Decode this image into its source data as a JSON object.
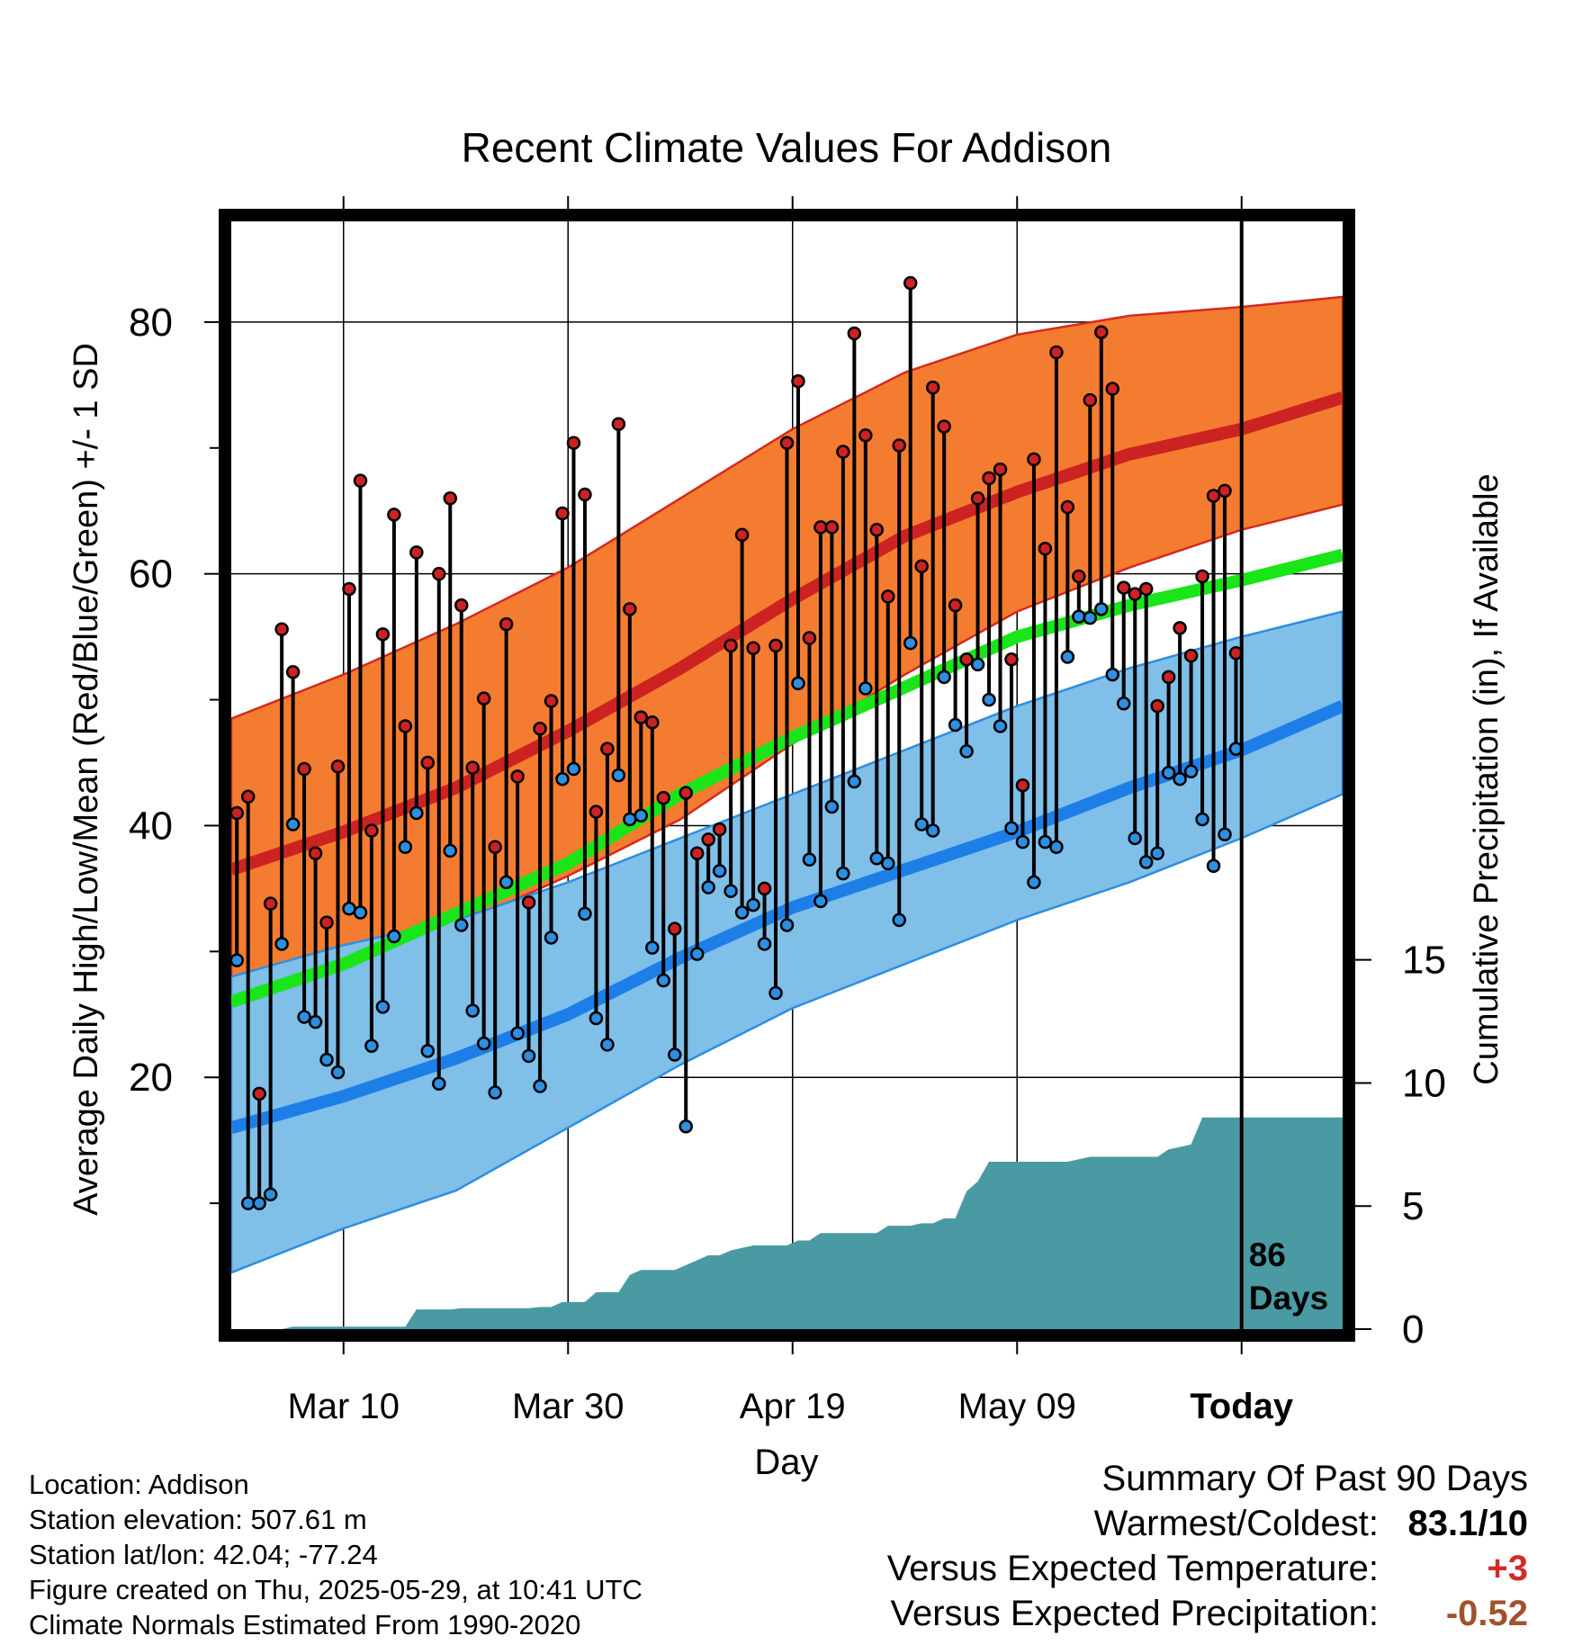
{
  "chart_data": {
    "type": "line",
    "title": "Recent Climate Values For Addison",
    "xlabel": "Day",
    "ylabel": "Average Daily High/Low/Mean (Red/Blue/Green) +/- 1 SD",
    "y2label": "Cumulative Precipitation (in), If Available",
    "x_ticks": [
      "Mar 10",
      "Mar 30",
      "Apr 19",
      "May 09",
      "Today"
    ],
    "x_tick_days": [
      10,
      30,
      50,
      70,
      90
    ],
    "y_ticks": [
      20,
      40,
      60,
      80
    ],
    "y_minor_ticks": [
      10,
      30,
      50,
      70
    ],
    "y2_ticks": [
      0,
      5,
      10,
      15
    ],
    "xlim": [
      0,
      99
    ],
    "ylim": [
      0,
      88
    ],
    "y2_range": [
      0,
      45
    ],
    "today_day": 90,
    "today_label": [
      "86",
      "Days"
    ],
    "normals": {
      "days": [
        0,
        10,
        20,
        30,
        40,
        50,
        60,
        70,
        80,
        90,
        99
      ],
      "high_mean": [
        36.5,
        39.5,
        43.0,
        47.5,
        52.5,
        58.0,
        63.0,
        66.5,
        69.5,
        71.5,
        74.0
      ],
      "high_upper": [
        48.5,
        52.0,
        56.0,
        60.5,
        66.0,
        71.5,
        76.0,
        79.0,
        80.5,
        81.2,
        82.0
      ],
      "high_lower": [
        27.0,
        29.0,
        32.0,
        36.0,
        40.5,
        46.5,
        52.0,
        57.0,
        60.5,
        63.5,
        65.5
      ],
      "mean": [
        26.0,
        29.0,
        33.0,
        37.0,
        42.5,
        47.0,
        51.0,
        55.0,
        57.5,
        59.5,
        61.5
      ],
      "low_mean": [
        16.0,
        18.5,
        21.5,
        25.0,
        29.5,
        33.5,
        36.5,
        39.5,
        43.0,
        46.0,
        49.5
      ],
      "low_upper": [
        28.0,
        30.5,
        32.5,
        35.5,
        39.0,
        42.5,
        46.0,
        49.5,
        52.5,
        55.0,
        57.0
      ],
      "low_lower": [
        4.5,
        8.0,
        11.0,
        16.0,
        21.0,
        25.5,
        29.0,
        32.5,
        35.5,
        39.0,
        42.5
      ]
    },
    "series": [
      {
        "name": "High",
        "color": "#cc2222",
        "values": [
          41.0,
          42.3,
          18.7,
          33.8,
          55.6,
          52.2,
          44.5,
          37.8,
          32.3,
          44.7,
          58.8,
          67.4,
          39.6,
          55.2,
          64.7,
          47.9,
          61.7,
          45.0,
          60.0,
          66.0,
          57.5,
          44.6,
          50.1,
          38.3,
          56.0,
          43.9,
          33.9,
          47.7,
          49.9,
          64.8,
          70.4,
          66.3,
          41.1,
          46.1,
          71.9,
          57.2,
          48.6,
          48.2,
          42.2,
          31.8,
          42.6,
          37.8,
          38.9,
          39.7,
          54.3,
          63.1,
          54.1,
          35.0,
          54.3,
          70.4,
          75.3,
          54.9,
          63.7,
          63.7,
          69.7,
          79.1,
          71.0,
          63.5,
          58.2,
          70.2,
          83.1,
          60.6,
          74.8,
          71.7,
          57.5,
          53.2,
          66.0,
          67.6,
          68.3,
          53.2,
          43.2,
          69.1,
          62.0,
          77.6,
          65.3,
          59.8,
          73.8,
          79.2,
          74.7,
          58.9,
          58.4,
          58.8,
          49.5,
          51.8,
          55.7,
          53.5,
          59.8,
          66.2,
          66.6,
          53.7
        ]
      },
      {
        "name": "Low",
        "color": "#2e8ee0",
        "values": [
          29.3,
          10.0,
          10.0,
          10.7,
          30.6,
          40.1,
          24.8,
          24.4,
          21.4,
          20.4,
          33.4,
          33.1,
          22.5,
          25.6,
          31.2,
          38.3,
          41.0,
          22.1,
          19.5,
          38.0,
          32.1,
          25.3,
          22.7,
          18.8,
          35.5,
          23.5,
          21.7,
          19.3,
          31.1,
          43.7,
          44.5,
          33.0,
          24.7,
          22.6,
          44.0,
          40.5,
          40.8,
          30.3,
          27.7,
          21.8,
          16.1,
          29.8,
          35.1,
          36.4,
          34.8,
          33.1,
          33.7,
          30.6,
          26.7,
          32.1,
          51.3,
          37.3,
          34.0,
          41.5,
          36.2,
          43.5,
          50.9,
          37.4,
          37.0,
          32.5,
          54.5,
          40.1,
          39.6,
          51.8,
          48.0,
          45.9,
          52.8,
          50.0,
          47.9,
          39.8,
          38.7,
          35.5,
          38.7,
          38.3,
          53.4,
          56.6,
          56.5,
          57.2,
          52.0,
          49.7,
          39.0,
          37.1,
          37.8,
          44.2,
          43.7,
          44.3,
          40.5,
          36.8,
          39.3,
          46.1
        ]
      },
      {
        "name": "Cumulative Precipitation",
        "color": "#4a9aa4",
        "values": [
          0.0,
          0.0,
          0.0,
          0.0,
          0.0,
          0.1,
          0.1,
          0.1,
          0.1,
          0.1,
          0.1,
          0.1,
          0.1,
          0.1,
          0.1,
          0.1,
          0.8,
          0.8,
          0.8,
          0.8,
          0.85,
          0.85,
          0.85,
          0.85,
          0.85,
          0.85,
          0.85,
          0.9,
          0.9,
          1.1,
          1.1,
          1.1,
          1.5,
          1.5,
          1.5,
          2.2,
          2.4,
          2.4,
          2.4,
          2.4,
          2.6,
          2.8,
          3.0,
          3.0,
          3.2,
          3.3,
          3.4,
          3.4,
          3.4,
          3.4,
          3.6,
          3.6,
          3.9,
          3.9,
          3.9,
          3.9,
          3.9,
          3.9,
          4.2,
          4.2,
          4.2,
          4.3,
          4.3,
          4.5,
          4.5,
          5.6,
          6.0,
          6.8,
          6.8,
          6.8,
          6.8,
          6.8,
          6.8,
          6.8,
          6.8,
          6.9,
          7.0,
          7.0,
          7.0,
          7.0,
          7.0,
          7.0,
          7.0,
          7.3,
          7.4,
          7.5,
          8.6,
          8.6,
          8.6,
          8.6
        ]
      }
    ],
    "colors": {
      "high_band": "#f47c30",
      "high_band_edge": "#d42a1e",
      "high_mean": "#cc2222",
      "mean": "#19e519",
      "low_band": "#7fbfe8",
      "low_band_edge": "#2e8ee0",
      "low_mean": "#1e7ee8",
      "precip": "#4a9aa4",
      "positive": "#d42a2a",
      "negative": "#a0522d"
    }
  },
  "info": [
    "Location: Addison",
    "Station elevation: 507.61 m",
    "Station lat/lon: 42.04; -77.24",
    "Figure created on Thu, 2025-05-29, at 10:41 UTC",
    "Climate Normals Estimated From 1990-2020"
  ],
  "summary": {
    "heading": "Summary Of Past 90 Days",
    "warm_label": "Warmest/Coldest:",
    "warm_value": "83.1/10",
    "temp_label": "Versus Expected Temperature:",
    "temp_value": "+3",
    "precip_label": "Versus Expected Precipitation:",
    "precip_value": "-0.52"
  }
}
